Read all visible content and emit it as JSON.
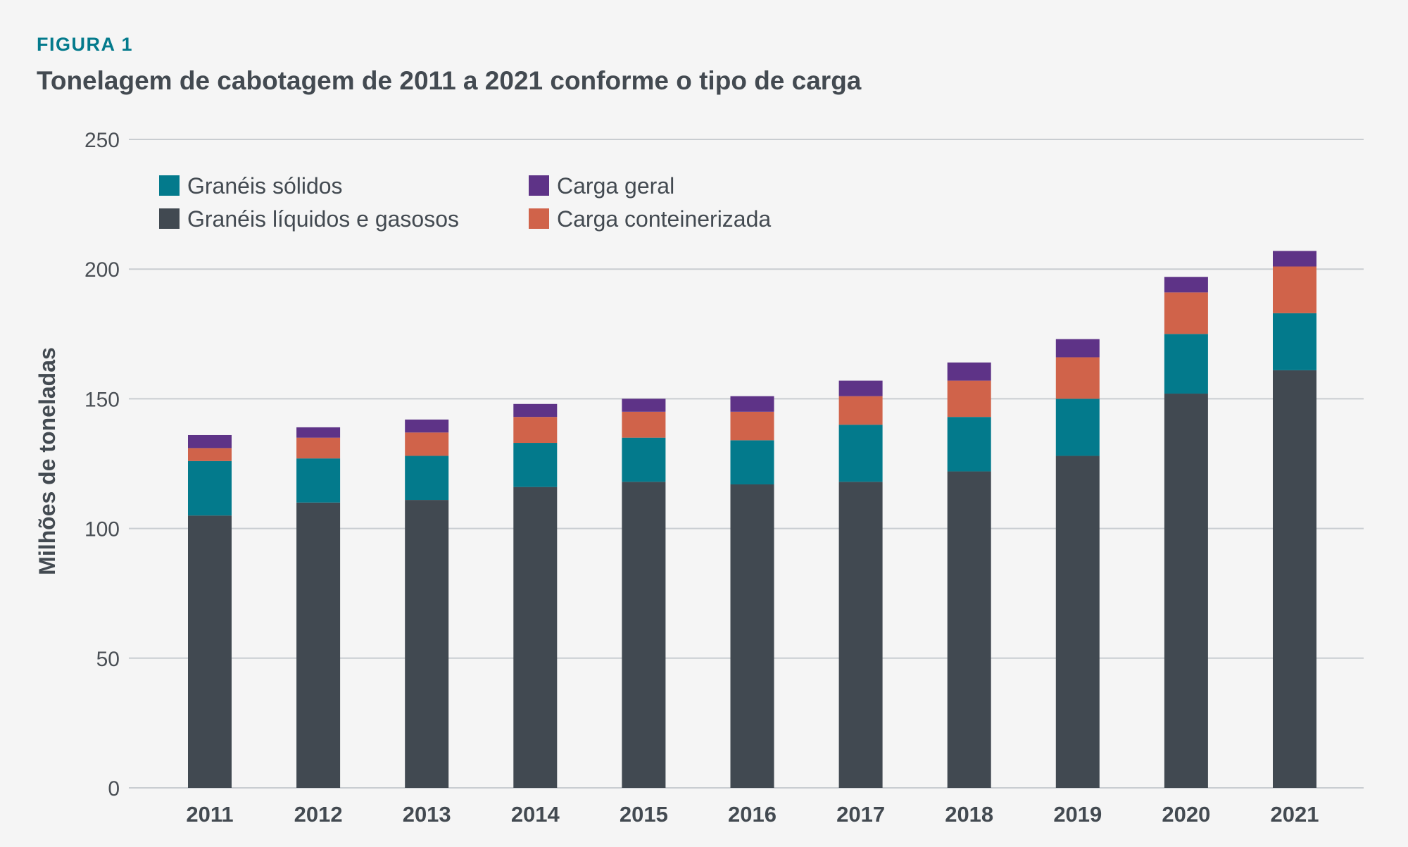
{
  "figure": {
    "label": "FIGURA 1",
    "label_color": "#037a8c",
    "title": "Tonelagem de cabotagem de 2011 a 2021 conforme o tipo de carga"
  },
  "chart_data": {
    "type": "bar",
    "stacked": true,
    "categories": [
      "2011",
      "2012",
      "2013",
      "2014",
      "2015",
      "2016",
      "2017",
      "2018",
      "2019",
      "2020",
      "2021"
    ],
    "ylabel": "Milhões de toneladas",
    "xlabel": "",
    "ylim": [
      0,
      250
    ],
    "yticks": [
      0,
      50,
      100,
      150,
      200,
      250
    ],
    "grid": true,
    "legend_position": "top-left",
    "series": [
      {
        "name": "Granéis líquidos e gasosos",
        "color": "#414951",
        "values": [
          105,
          110,
          111,
          116,
          118,
          117,
          118,
          122,
          128,
          152,
          161
        ]
      },
      {
        "name": "Granéis sólidos",
        "color": "#037a8c",
        "values": [
          21,
          17,
          17,
          17,
          17,
          17,
          22,
          21,
          22,
          23,
          22
        ]
      },
      {
        "name": "Carga conteinerizada",
        "color": "#d0634a",
        "values": [
          5,
          8,
          9,
          10,
          10,
          11,
          11,
          14,
          16,
          16,
          18
        ]
      },
      {
        "name": "Carga geral",
        "color": "#5e3387",
        "values": [
          5,
          4,
          5,
          5,
          5,
          6,
          6,
          7,
          7,
          6,
          6
        ]
      }
    ],
    "legend_order": [
      "Granéis sólidos",
      "Carga geral",
      "Granéis líquidos e gasosos",
      "Carga conteinerizada"
    ]
  }
}
